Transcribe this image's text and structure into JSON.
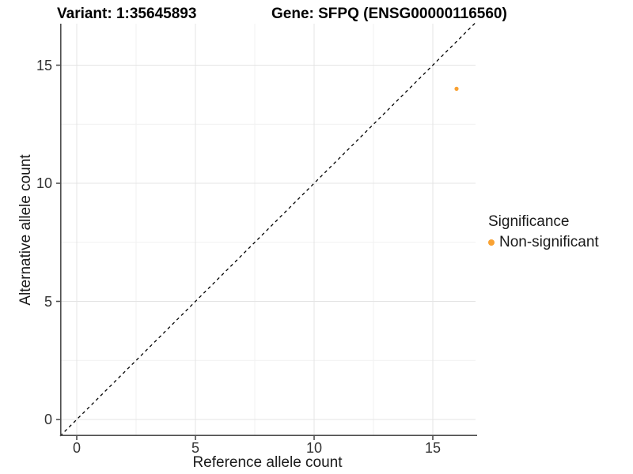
{
  "titles": {
    "variant": "Variant: 1:35645893",
    "gene": "Gene: SFPQ (ENSG00000116560)"
  },
  "chart_data": {
    "type": "scatter",
    "xlabel": "Reference allele count",
    "ylabel": "Alternative allele count",
    "xlim": [
      -0.7,
      16.8
    ],
    "ylim": [
      -0.7,
      16.8
    ],
    "xticks": [
      0,
      5,
      10,
      15
    ],
    "yticks": [
      0,
      5,
      10,
      15
    ],
    "xtick_labels": [
      "0",
      "5",
      "10",
      "15"
    ],
    "ytick_labels": [
      "0",
      "5",
      "10",
      "15"
    ],
    "minor_gridlines": [
      2.5,
      7.5,
      12.5
    ],
    "grid": true,
    "series": [
      {
        "name": "Non-significant",
        "color": "#F9A233",
        "points": [
          {
            "x": 16,
            "y": 14
          }
        ]
      }
    ],
    "reference_line": {
      "type": "identity",
      "style": "dashed",
      "color": "#000000"
    },
    "legend": {
      "title": "Significance",
      "position": "right",
      "items": [
        {
          "label": "Non-significant",
          "color": "#F9A233"
        }
      ]
    },
    "colors": {
      "axis_line": "#4d4d4d",
      "major_grid": "#e4e4e4",
      "minor_grid": "#f1f1f1"
    }
  }
}
